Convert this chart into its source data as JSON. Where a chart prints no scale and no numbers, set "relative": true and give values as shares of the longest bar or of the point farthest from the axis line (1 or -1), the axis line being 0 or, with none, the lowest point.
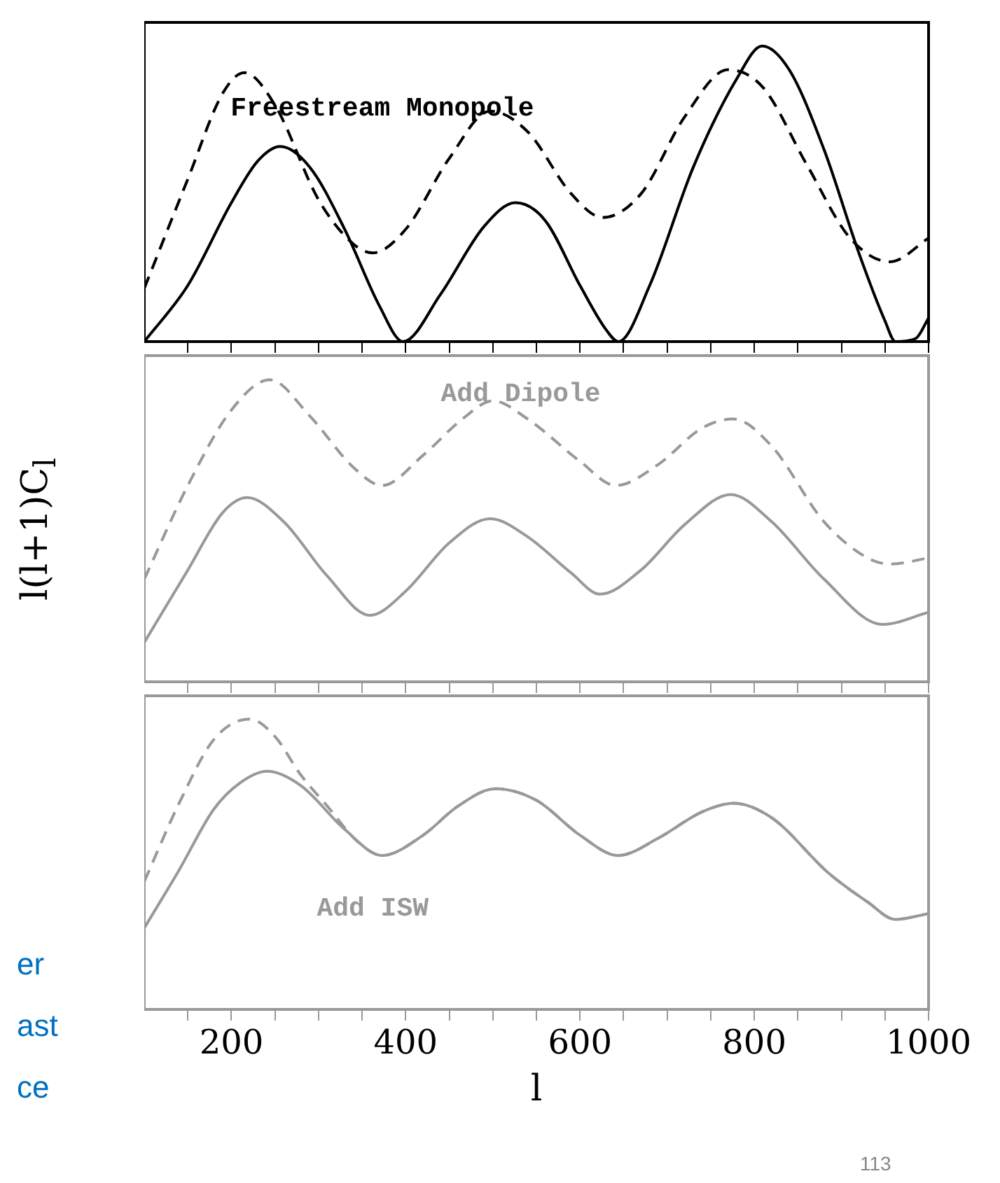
{
  "chart_data": [
    {
      "type": "line",
      "title": "Freestream Monopole",
      "relative": true,
      "xlim": [
        100,
        1000
      ],
      "tick_labels": false,
      "grid": false,
      "legend": false,
      "xticks": [
        {
          "value": 150,
          "label": null
        },
        200,
        {
          "value": 250,
          "label": null
        },
        {
          "value": 300,
          "label": null
        },
        {
          "value": 350,
          "label": null
        },
        400,
        {
          "value": 450,
          "label": null
        },
        {
          "value": 500,
          "label": null
        },
        {
          "value": 550,
          "label": null
        },
        600,
        {
          "value": 650,
          "label": null
        },
        {
          "value": 700,
          "label": null
        },
        {
          "value": 750,
          "label": null
        },
        800,
        {
          "value": 850,
          "label": null
        },
        {
          "value": 900,
          "label": null
        },
        {
          "value": 950,
          "label": null
        },
        1000
      ],
      "series": [
        {
          "color": "#000000",
          "line_style": "solid",
          "x": [
            100,
            150,
            200,
            230,
            256,
            290,
            330,
            370,
            397,
            440,
            490,
            526,
            560,
            600,
            630,
            644,
            680,
            730,
            780,
            809,
            840,
            880,
            920,
            950,
            962,
            985,
            1000
          ],
          "values": [
            0,
            0.19,
            0.47,
            0.61,
            0.66,
            0.59,
            0.38,
            0.12,
            0,
            0.16,
            0.39,
            0.47,
            0.41,
            0.19,
            0.04,
            0,
            0.19,
            0.59,
            0.89,
            1,
            0.92,
            0.65,
            0.3,
            0.07,
            0,
            0.01,
            0.08
          ]
        },
        {
          "color": "#000000",
          "line_style": "dashed",
          "x": [
            100,
            150,
            190,
            215,
            250,
            300,
            340,
            362,
            400,
            450,
            497,
            540,
            590,
            626,
            670,
            720,
            770,
            810,
            860,
            910,
            956,
            1000
          ],
          "values": [
            0.18,
            0.55,
            0.84,
            0.91,
            0.8,
            0.48,
            0.33,
            0.3,
            0.38,
            0.62,
            0.78,
            0.71,
            0.5,
            0.42,
            0.5,
            0.76,
            0.92,
            0.86,
            0.6,
            0.35,
            0.27,
            0.35
          ]
        }
      ]
    },
    {
      "type": "line",
      "title": "Add Dipole",
      "ylabel": "l(l+1)C$_{l}$",
      "relative": true,
      "xlim": [
        100,
        1000
      ],
      "tick_labels": false,
      "grid": false,
      "legend": false,
      "xticks": [
        {
          "value": 150,
          "label": null
        },
        200,
        {
          "value": 250,
          "label": null
        },
        {
          "value": 300,
          "label": null
        },
        {
          "value": 350,
          "label": null
        },
        400,
        {
          "value": 450,
          "label": null
        },
        {
          "value": 500,
          "label": null
        },
        {
          "value": 550,
          "label": null
        },
        600,
        {
          "value": 650,
          "label": null
        },
        {
          "value": 700,
          "label": null
        },
        {
          "value": 750,
          "label": null
        },
        800,
        {
          "value": 850,
          "label": null
        },
        {
          "value": 900,
          "label": null
        },
        {
          "value": 950,
          "label": null
        },
        1000
      ],
      "series": [
        {
          "color": "#999999",
          "line_style": "solid",
          "x": [
            100,
            150,
            190,
            218,
            260,
            310,
            359,
            400,
            450,
            497,
            540,
            590,
            623,
            670,
            720,
            773,
            820,
            880,
            947,
            1000
          ],
          "values": [
            0.13,
            0.37,
            0.56,
            0.61,
            0.53,
            0.35,
            0.22,
            0.3,
            0.46,
            0.54,
            0.48,
            0.36,
            0.29,
            0.37,
            0.52,
            0.62,
            0.53,
            0.34,
            0.19,
            0.23
          ]
        },
        {
          "color": "#999999",
          "line_style": "dashed",
          "x": [
            100,
            150,
            200,
            244,
            290,
            340,
            373,
            420,
            465,
            500,
            540,
            600,
            641,
            690,
            740,
            776,
            820,
            880,
            930,
            956,
            1000
          ],
          "values": [
            0.34,
            0.65,
            0.9,
            1,
            0.88,
            0.71,
            0.65,
            0.75,
            0.87,
            0.93,
            0.87,
            0.73,
            0.65,
            0.72,
            0.84,
            0.87,
            0.78,
            0.53,
            0.41,
            0.39,
            0.41
          ]
        }
      ]
    },
    {
      "type": "line",
      "title": "Add ISW",
      "xlabel": "l",
      "relative": true,
      "xlim": [
        100,
        1000
      ],
      "tick_labels": "x",
      "grid": false,
      "legend": false,
      "xticks": [
        {
          "value": 150,
          "label": null
        },
        200,
        {
          "value": 250,
          "label": null
        },
        {
          "value": 300,
          "label": null
        },
        {
          "value": 350,
          "label": null
        },
        400,
        {
          "value": 450,
          "label": null
        },
        {
          "value": 500,
          "label": null
        },
        {
          "value": 550,
          "label": null
        },
        600,
        {
          "value": 650,
          "label": null
        },
        {
          "value": 700,
          "label": null
        },
        {
          "value": 750,
          "label": null
        },
        800,
        {
          "value": 850,
          "label": null
        },
        {
          "value": 900,
          "label": null
        },
        {
          "value": 950,
          "label": null
        },
        1000
      ],
      "annotations": [
        "er",
        "ast",
        "ce",
        "113"
      ],
      "series": [
        {
          "color": "#999999",
          "line_style": "solid",
          "x": [
            100,
            140,
            180,
            210,
            241,
            280,
            330,
            373,
            420,
            460,
            503,
            550,
            600,
            644,
            690,
            740,
            776,
            820,
            885,
            930,
            962,
            1000
          ],
          "values": [
            0.28,
            0.48,
            0.69,
            0.78,
            0.82,
            0.77,
            0.62,
            0.53,
            0.6,
            0.7,
            0.76,
            0.72,
            0.6,
            0.53,
            0.59,
            0.68,
            0.71,
            0.66,
            0.47,
            0.37,
            0.31,
            0.33
          ]
        },
        {
          "color": "#999999",
          "line_style": "dashed",
          "x": [
            100,
            140,
            180,
            221,
            250,
            279,
            310,
            344,
            373,
            420,
            460,
            503,
            550,
            600,
            644,
            690,
            740,
            776,
            820,
            885,
            930,
            962,
            1000
          ],
          "values": [
            0.44,
            0.71,
            0.93,
            1,
            0.94,
            0.81,
            0.7,
            0.58,
            0.53,
            0.6,
            0.7,
            0.76,
            0.72,
            0.6,
            0.53,
            0.59,
            0.68,
            0.71,
            0.66,
            0.47,
            0.37,
            0.31,
            0.33
          ]
        }
      ]
    }
  ]
}
